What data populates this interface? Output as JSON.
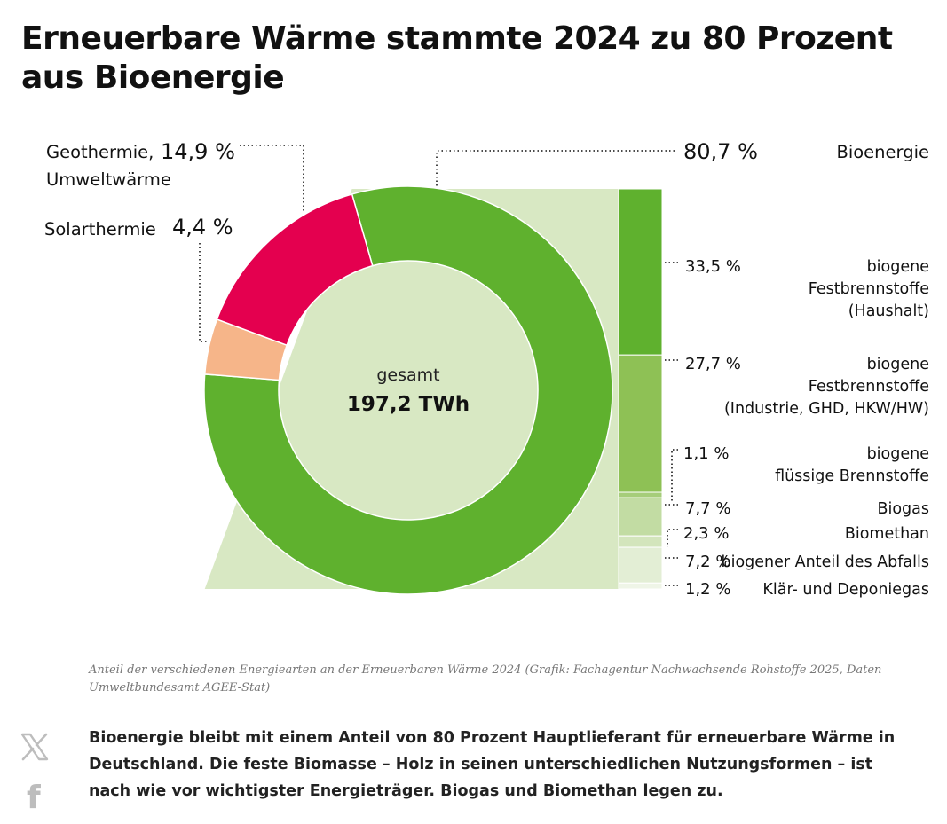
{
  "title": "Erneuerbare Wärme stammte 2024 zu 80 Prozent aus Bioenergie",
  "chart_data": {
    "type": "pie",
    "center_label": "gesamt",
    "center_value": "197,2 TWh",
    "slices": [
      {
        "label": "Bioenergie",
        "value": 80.7,
        "value_label": "80,7 %",
        "color": "#5fb12e"
      },
      {
        "label": "Solarthermie",
        "value": 4.4,
        "value_label": "4,4 %",
        "color": "#f6b589"
      },
      {
        "label_line1": "Geothermie,",
        "label_line2": "Umweltwärme",
        "value": 14.9,
        "value_label": "14,9 %",
        "color": "#e4004f"
      }
    ],
    "breakdown": [
      {
        "label_lines": [
          "biogene",
          "Festbrennstoffe",
          "(Haushalt)"
        ],
        "value": 33.5,
        "value_label": "33,5 %",
        "color": "#5fb12e"
      },
      {
        "label_lines": [
          "biogene",
          "Festbrennstoffe",
          "(Industrie, GHD, HKW/HW)"
        ],
        "value": 27.7,
        "value_label": "27,7 %",
        "color": "#8ec155"
      },
      {
        "label_lines": [
          "biogene",
          "flüssige Brennstoffe"
        ],
        "value": 1.1,
        "value_label": "1,1 %",
        "color": "#a6cd7a"
      },
      {
        "label_lines": [
          "Biogas"
        ],
        "value": 7.7,
        "value_label": "7,7 %",
        "color": "#c2dca3"
      },
      {
        "label_lines": [
          "Biomethan"
        ],
        "value": 2.3,
        "value_label": "2,3 %",
        "color": "#d3e5bc"
      },
      {
        "label_lines": [
          "biogener Anteil des Abfalls"
        ],
        "value": 7.2,
        "value_label": "7,2 %",
        "color": "#e3eed5"
      },
      {
        "label_lines": [
          "Klär- und Deponiegas"
        ],
        "value": 1.2,
        "value_label": "1,2 %",
        "color": "#eff5e7"
      }
    ]
  },
  "caption": "Anteil der verschiedenen Energiearten an der Erneuerbaren Wärme 2024 (Grafik: Fachagentur Nachwachsende Rohstoffe 2025, Daten Umweltbundesamt AGEE-Stat)",
  "body_text": "Bioenergie bleibt mit einem Anteil von 80 Prozent Hauptlieferant für erneuerbare Wärme in Deutschland. Die feste Biomasse – Holz in seinen unterschiedlichen Nutzungsformen – ist nach wie vor wichtigster Energieträger. Biogas und Biomethan legen zu.",
  "social": {
    "x_icon": "x-twitter-icon",
    "facebook_icon": "facebook-icon",
    "facebook_glyph": "f"
  }
}
